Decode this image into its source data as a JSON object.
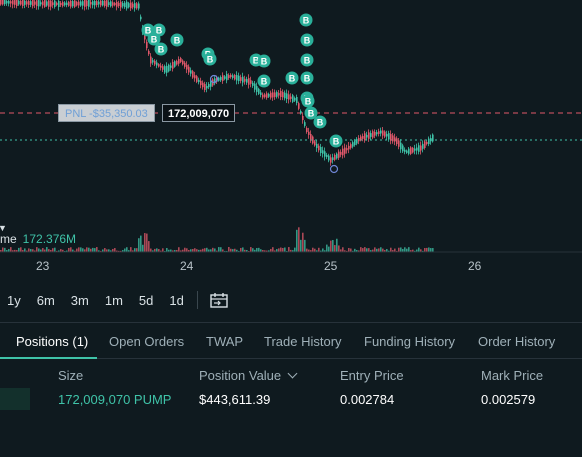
{
  "chart": {
    "pnl_label": "PNL -$35,350.03",
    "position_qty_label": "172,009,070",
    "volume_label": "me",
    "volume_value": "172.376M",
    "x_ticks": [
      "23",
      "24",
      "25",
      "26"
    ],
    "marker_letter": "B",
    "colors": {
      "up": "#3fc3a8",
      "down": "#e0586a",
      "entry_line": "#e0586a",
      "mark_line": "#3fc3a8",
      "marker": "#2ab09a"
    }
  },
  "timeframes": [
    "1y",
    "6m",
    "3m",
    "1m",
    "5d",
    "1d"
  ],
  "tabs": [
    {
      "label": "Positions (1)",
      "active": true
    },
    {
      "label": "Open Orders",
      "active": false
    },
    {
      "label": "TWAP",
      "active": false
    },
    {
      "label": "Trade History",
      "active": false
    },
    {
      "label": "Funding History",
      "active": false
    },
    {
      "label": "Order History",
      "active": false
    }
  ],
  "positions": {
    "columns": {
      "size": "Size",
      "position_value": "Position Value",
      "entry_price": "Entry Price",
      "mark_price": "Mark Price"
    },
    "rows": [
      {
        "size": "172,009,070 PUMP",
        "position_value": "$443,611.39",
        "entry_price": "0.002784",
        "mark_price": "0.002579"
      }
    ]
  }
}
